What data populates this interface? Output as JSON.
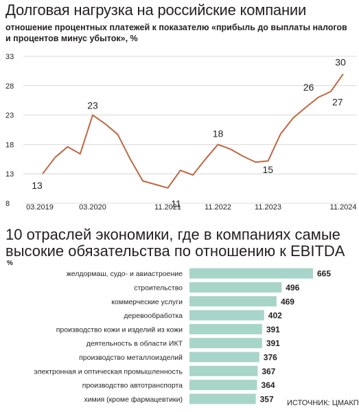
{
  "chart_data": [
    {
      "type": "line",
      "title": "Долговая нагрузка на российские компании",
      "subtitle": "отношение процентных платежей к показателю «прибыль до выплаты налогов и процентов минус убыток», %",
      "ylim": [
        8,
        33
      ],
      "y_ticks": [
        8,
        13,
        18,
        23,
        28,
        33
      ],
      "x_tick_labels": [
        "03.2019",
        "03.2020",
        "11.2021",
        "11.2022",
        "11.2023",
        "11.2024"
      ],
      "grid": true,
      "color": "#c0653e",
      "series": [
        {
          "values": [
            13,
            15.8,
            17.6,
            16.4,
            23,
            21.5,
            19.7,
            15.5,
            11.8,
            11.2,
            10.6,
            13.6,
            12.8,
            15.5,
            18,
            17.2,
            16,
            15,
            15.2,
            19.8,
            22.5,
            24.3,
            26,
            27,
            30
          ]
        }
      ],
      "data_labels": [
        {
          "index": 0,
          "text": "13"
        },
        {
          "index": 4,
          "text": "23"
        },
        {
          "index": 10,
          "text": "11"
        },
        {
          "index": 14,
          "text": "18"
        },
        {
          "index": 17,
          "text": "15"
        },
        {
          "index": 22,
          "text": "26"
        },
        {
          "index": 23,
          "text": "27"
        },
        {
          "index": 24,
          "text": "30"
        }
      ]
    },
    {
      "type": "bar",
      "title": "10 отраслей экономики, где в компаниях самые высокие обязательства по отношению к EBITDA",
      "unit_label": "%",
      "categories": [
        "желдормаш, судо- и авиастроение",
        "строительство",
        "коммерческие услуги",
        "деревообработка",
        "производство кожи и изделий из кожи",
        "деятельность в области ИКТ",
        "производство металлоизделий",
        "электронная и оптическая промышленность",
        "производство автотранспорта",
        "химия (кроме фармацевтики)"
      ],
      "values": [
        665,
        496,
        469,
        402,
        391,
        391,
        376,
        367,
        364,
        357
      ],
      "color": "#a8d5c9"
    }
  ],
  "source": "ИСТОЧНИК: ЦМАКП"
}
